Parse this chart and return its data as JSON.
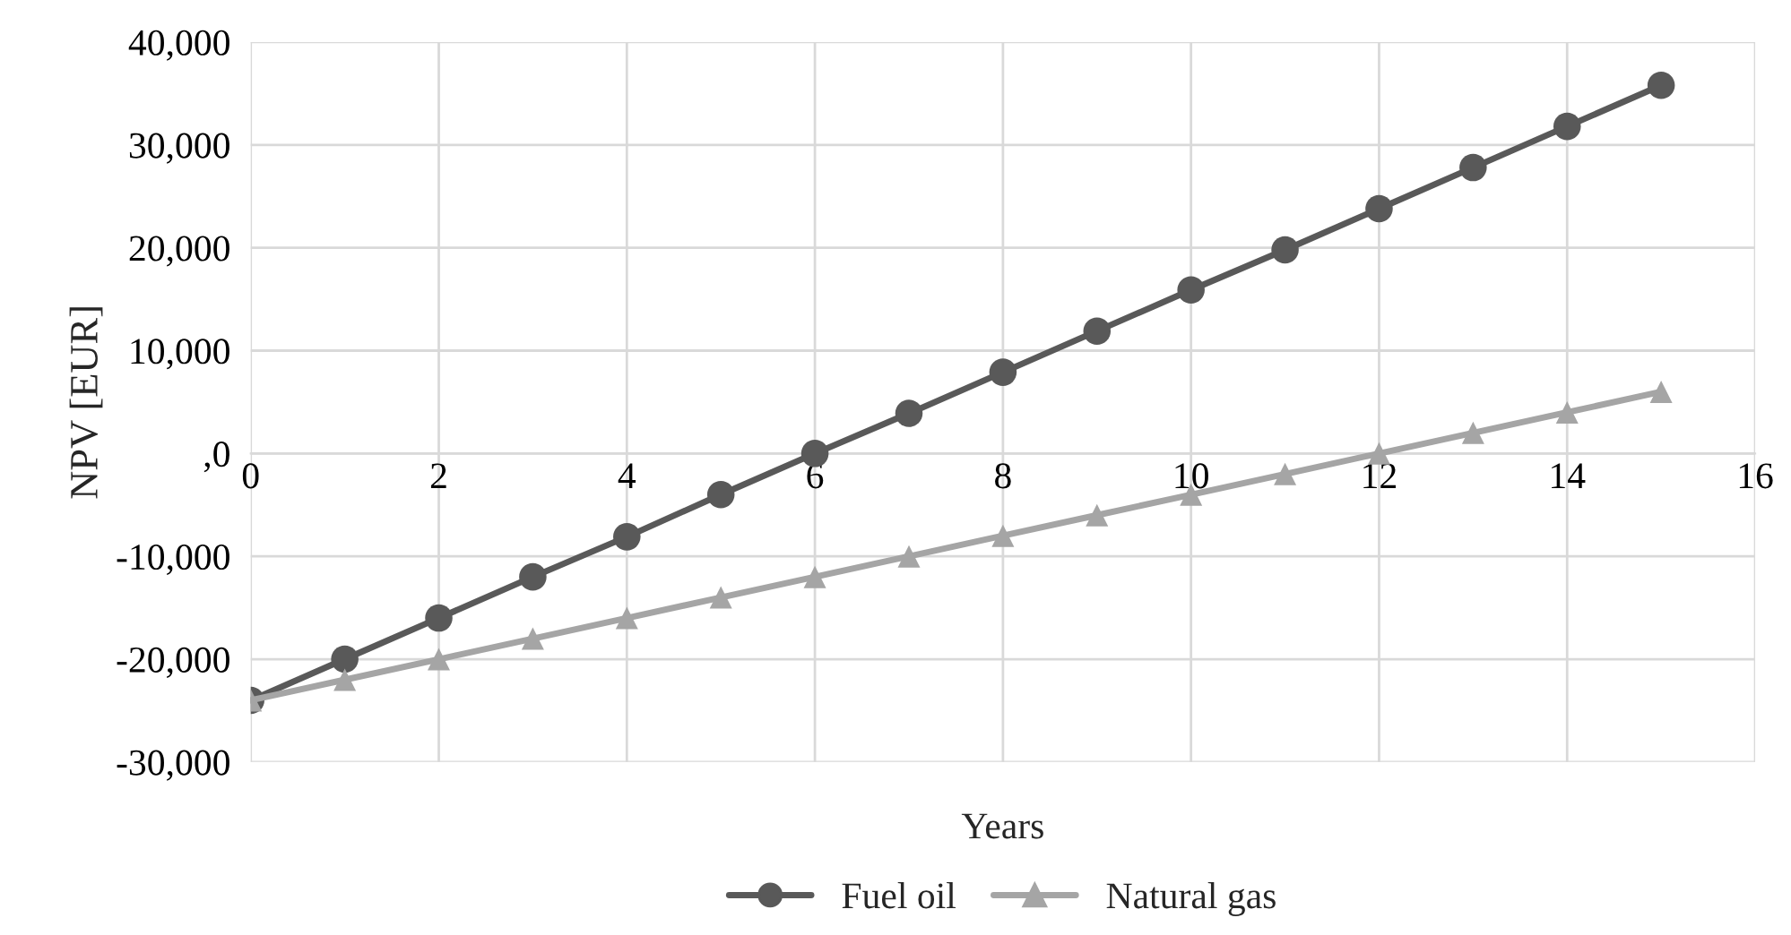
{
  "chart_data": {
    "type": "line",
    "xlabel": "Years",
    "ylabel": "NPV [EUR]",
    "x": [
      0,
      1,
      2,
      3,
      4,
      5,
      6,
      7,
      8,
      9,
      10,
      11,
      12,
      13,
      14,
      15
    ],
    "series": [
      {
        "name": "Fuel oil",
        "color": "#595959",
        "marker": "circle",
        "values": [
          -24000,
          -20000,
          -16000,
          -12000,
          -8100,
          -4000,
          0,
          3900,
          7900,
          11900,
          15900,
          19800,
          23800,
          27800,
          31800,
          35800
        ]
      },
      {
        "name": "Natural gas",
        "color": "#a5a5a5",
        "marker": "triangle",
        "values": [
          -24000,
          -22000,
          -20000,
          -18000,
          -16000,
          -14000,
          -12000,
          -10000,
          -8000,
          -6000,
          -4000,
          -2000,
          0,
          2000,
          4000,
          6000
        ]
      }
    ],
    "xlim": [
      0,
      16
    ],
    "xticks": [
      0,
      2,
      4,
      6,
      8,
      10,
      12,
      14,
      16
    ],
    "ylim": [
      -30000,
      40000
    ],
    "yticks": [
      {
        "value": -30000,
        "label": "-30,000"
      },
      {
        "value": -20000,
        "label": "-20,000"
      },
      {
        "value": -10000,
        "label": "-10,000"
      },
      {
        "value": 0,
        "label": ",0"
      },
      {
        "value": 10000,
        "label": "10,000"
      },
      {
        "value": 20000,
        "label": "20,000"
      },
      {
        "value": 30000,
        "label": "30,000"
      },
      {
        "value": 40000,
        "label": "40,000"
      }
    ],
    "grid": true,
    "legend": "bottom",
    "line_style": "solid"
  }
}
